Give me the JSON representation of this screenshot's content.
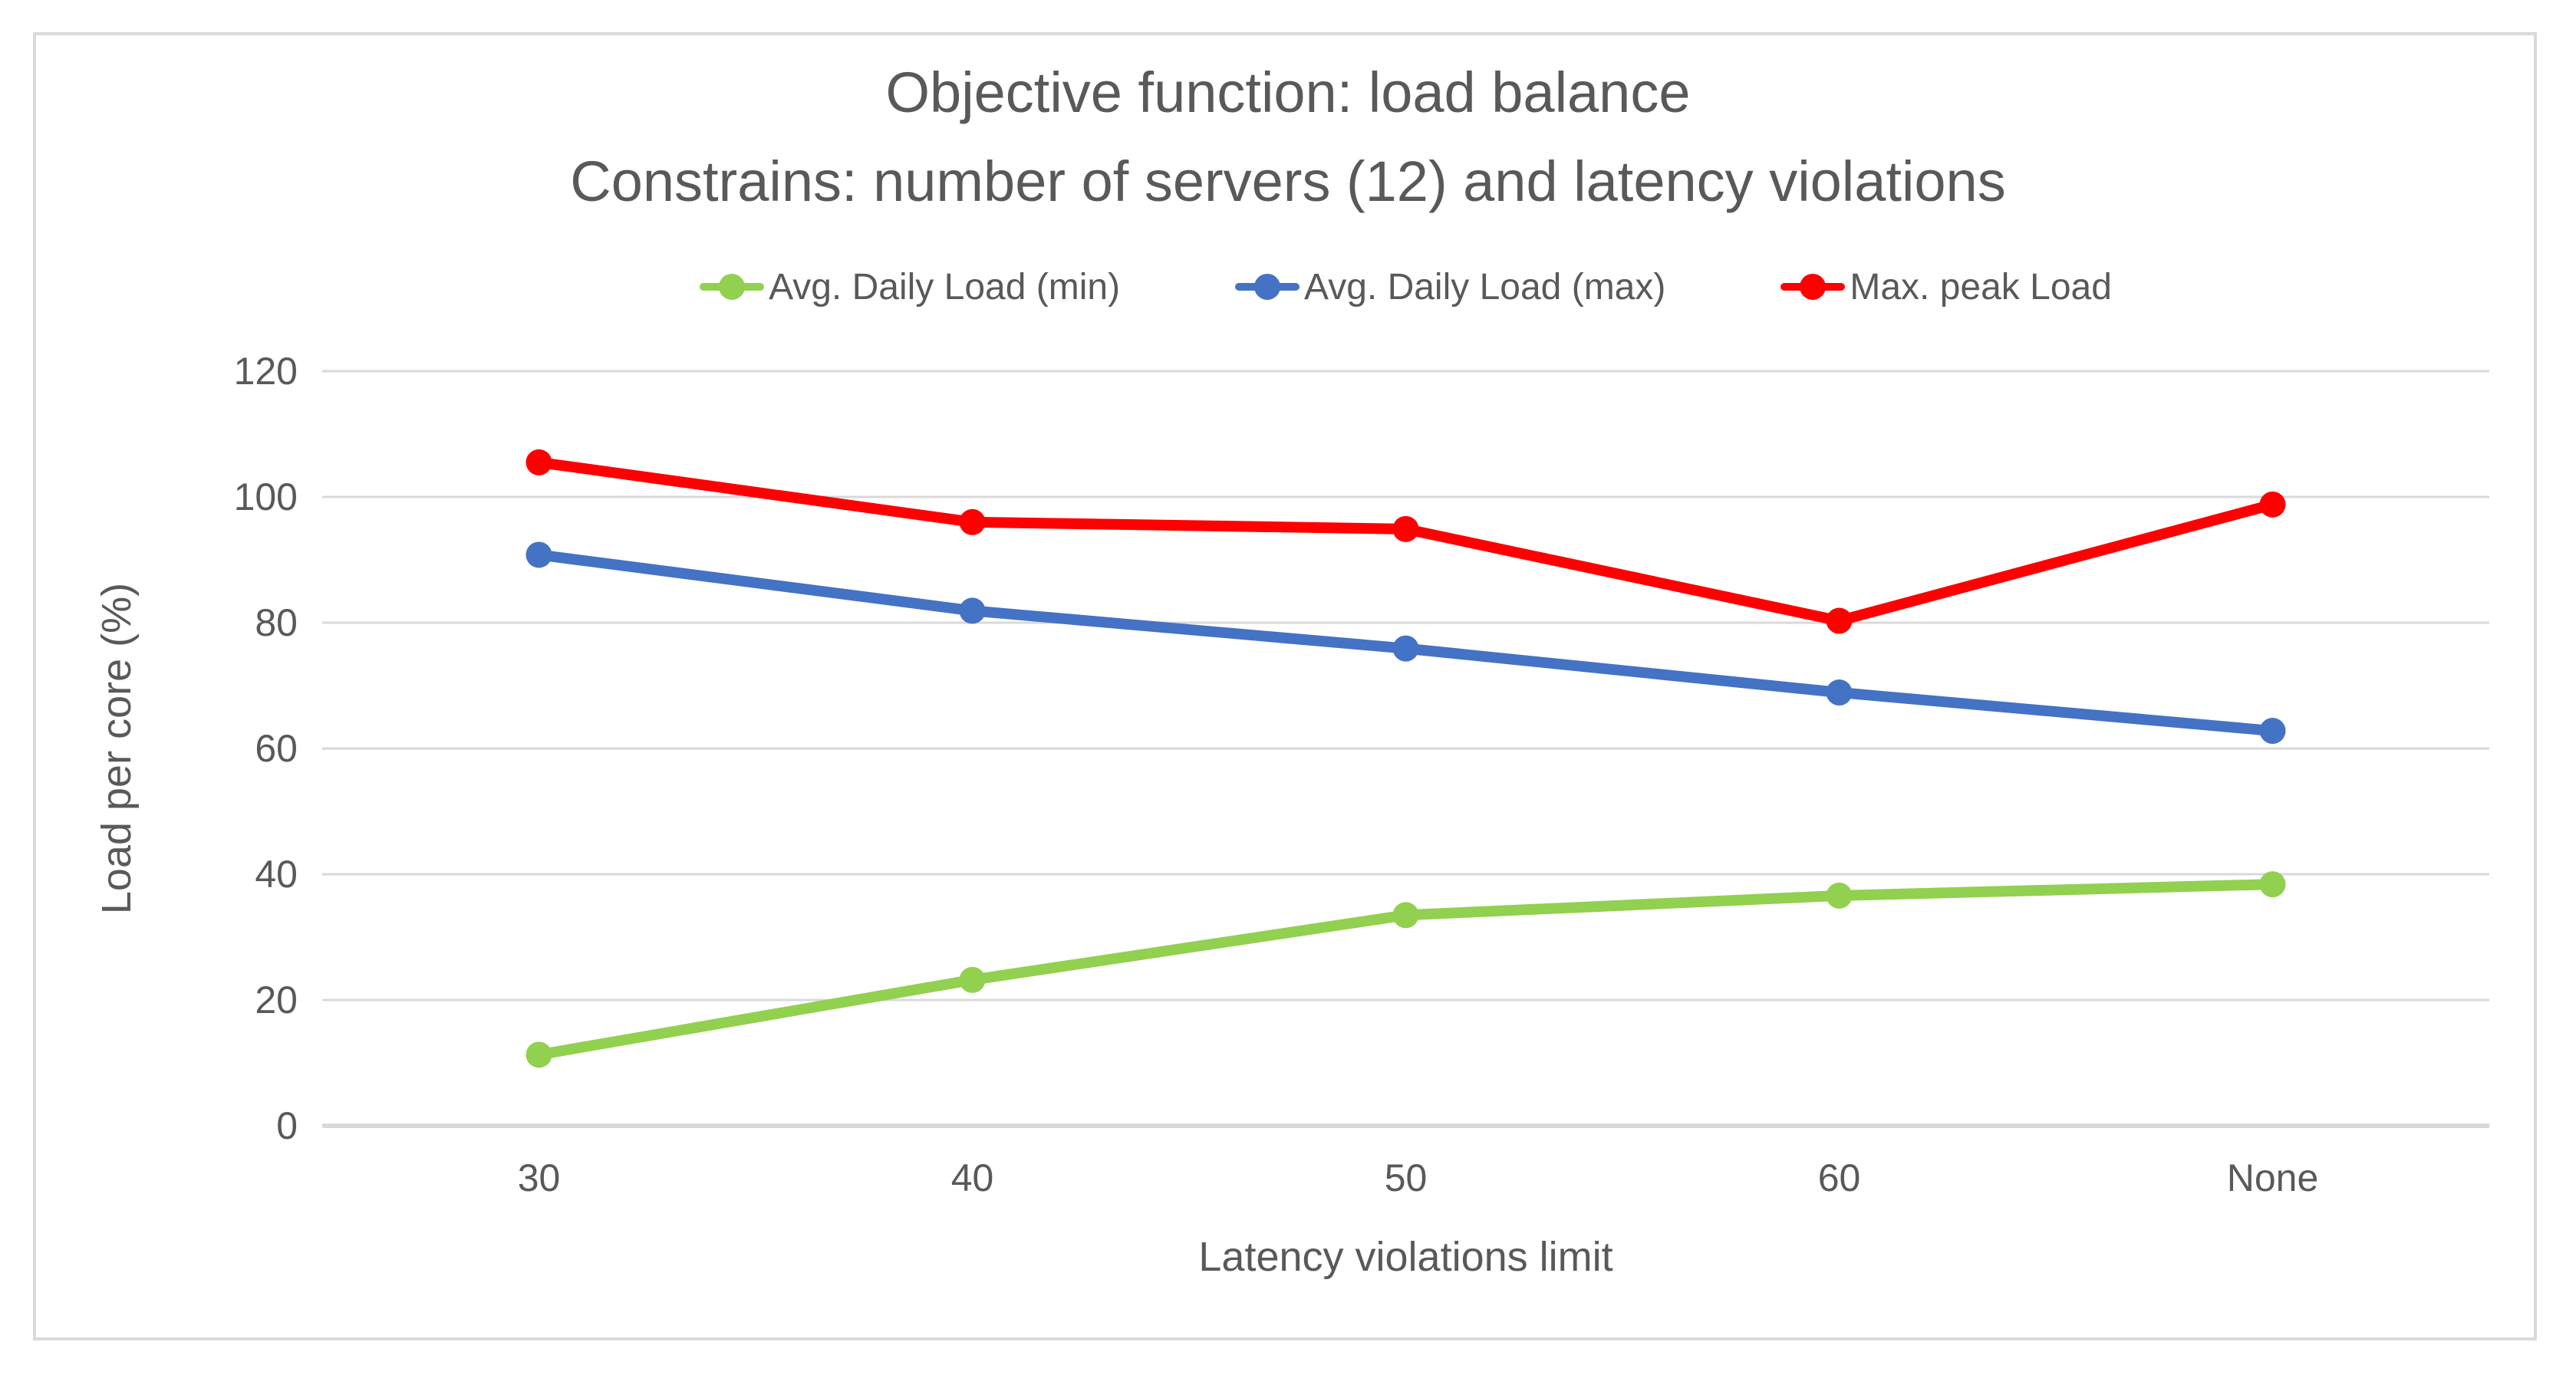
{
  "chart_data": {
    "type": "line",
    "title": "Objective function: load balance",
    "subtitle": "Constrains: number of servers (12) and latency violations",
    "categories": [
      "30",
      "40",
      "50",
      "60",
      "None"
    ],
    "series": [
      {
        "name": "Avg. Daily Load (min)",
        "color": "#92D050",
        "values": [
          11.3,
          23.2,
          33.5,
          36.6,
          38.4
        ]
      },
      {
        "name": "Avg. Daily Load (max)",
        "color": "#4472C4",
        "values": [
          90.8,
          81.9,
          75.9,
          68.9,
          62.8
        ]
      },
      {
        "name": "Max. peak Load",
        "color": "#FF0000",
        "values": [
          105.5,
          96.0,
          94.9,
          80.3,
          98.8
        ]
      }
    ],
    "xlabel": "Latency violations limit",
    "ylabel": "Load per core (%)",
    "ylim": [
      0,
      120
    ],
    "ytick_step": 20,
    "yticks": [
      "0",
      "20",
      "40",
      "60",
      "80",
      "100",
      "120"
    ],
    "grid": true,
    "legend_position": "top",
    "marker": "circle",
    "colors": {
      "text": "#595959",
      "gridline": "#D9D9D9",
      "axis_line": "#D9D9D9",
      "background": "#FFFFFF",
      "border": "#DADADA"
    }
  }
}
